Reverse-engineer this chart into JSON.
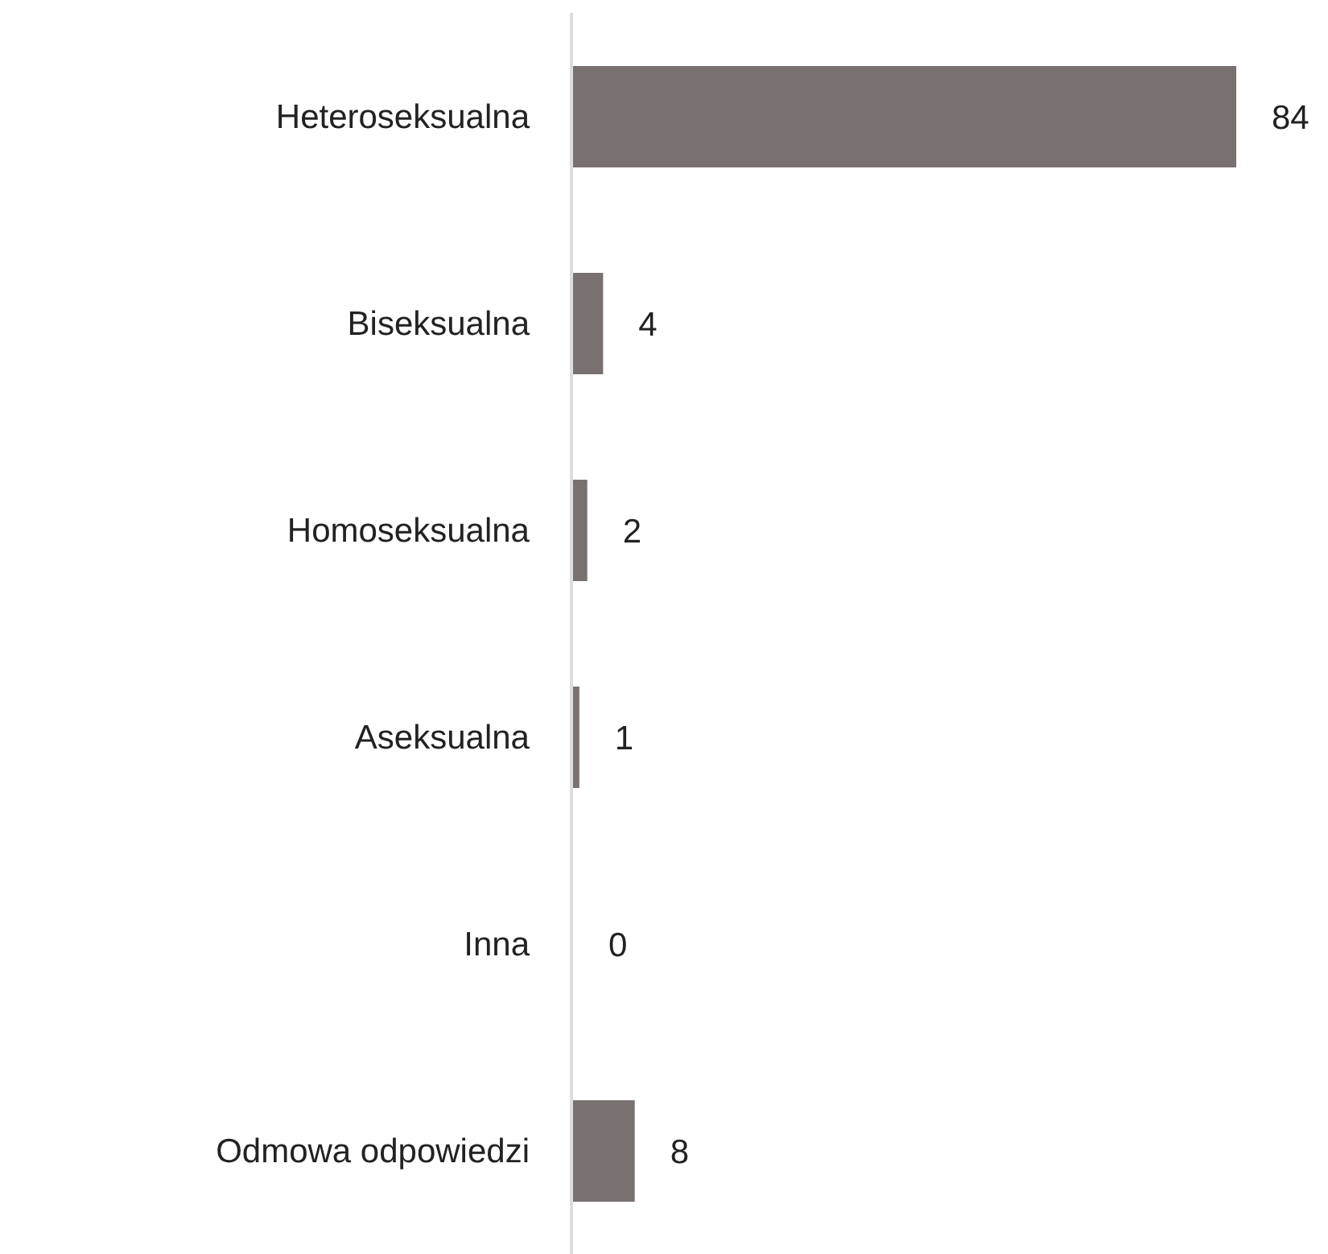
{
  "chart_data": {
    "type": "bar",
    "orientation": "horizontal",
    "categories": [
      "Heteroseksualna",
      "Biseksualna",
      "Homoseksualna",
      "Aseksualna",
      "Inna",
      "Odmowa odpowiedzi"
    ],
    "values": [
      84,
      4,
      2,
      1,
      0,
      8
    ],
    "color": "#787170",
    "data_labels": true
  }
}
